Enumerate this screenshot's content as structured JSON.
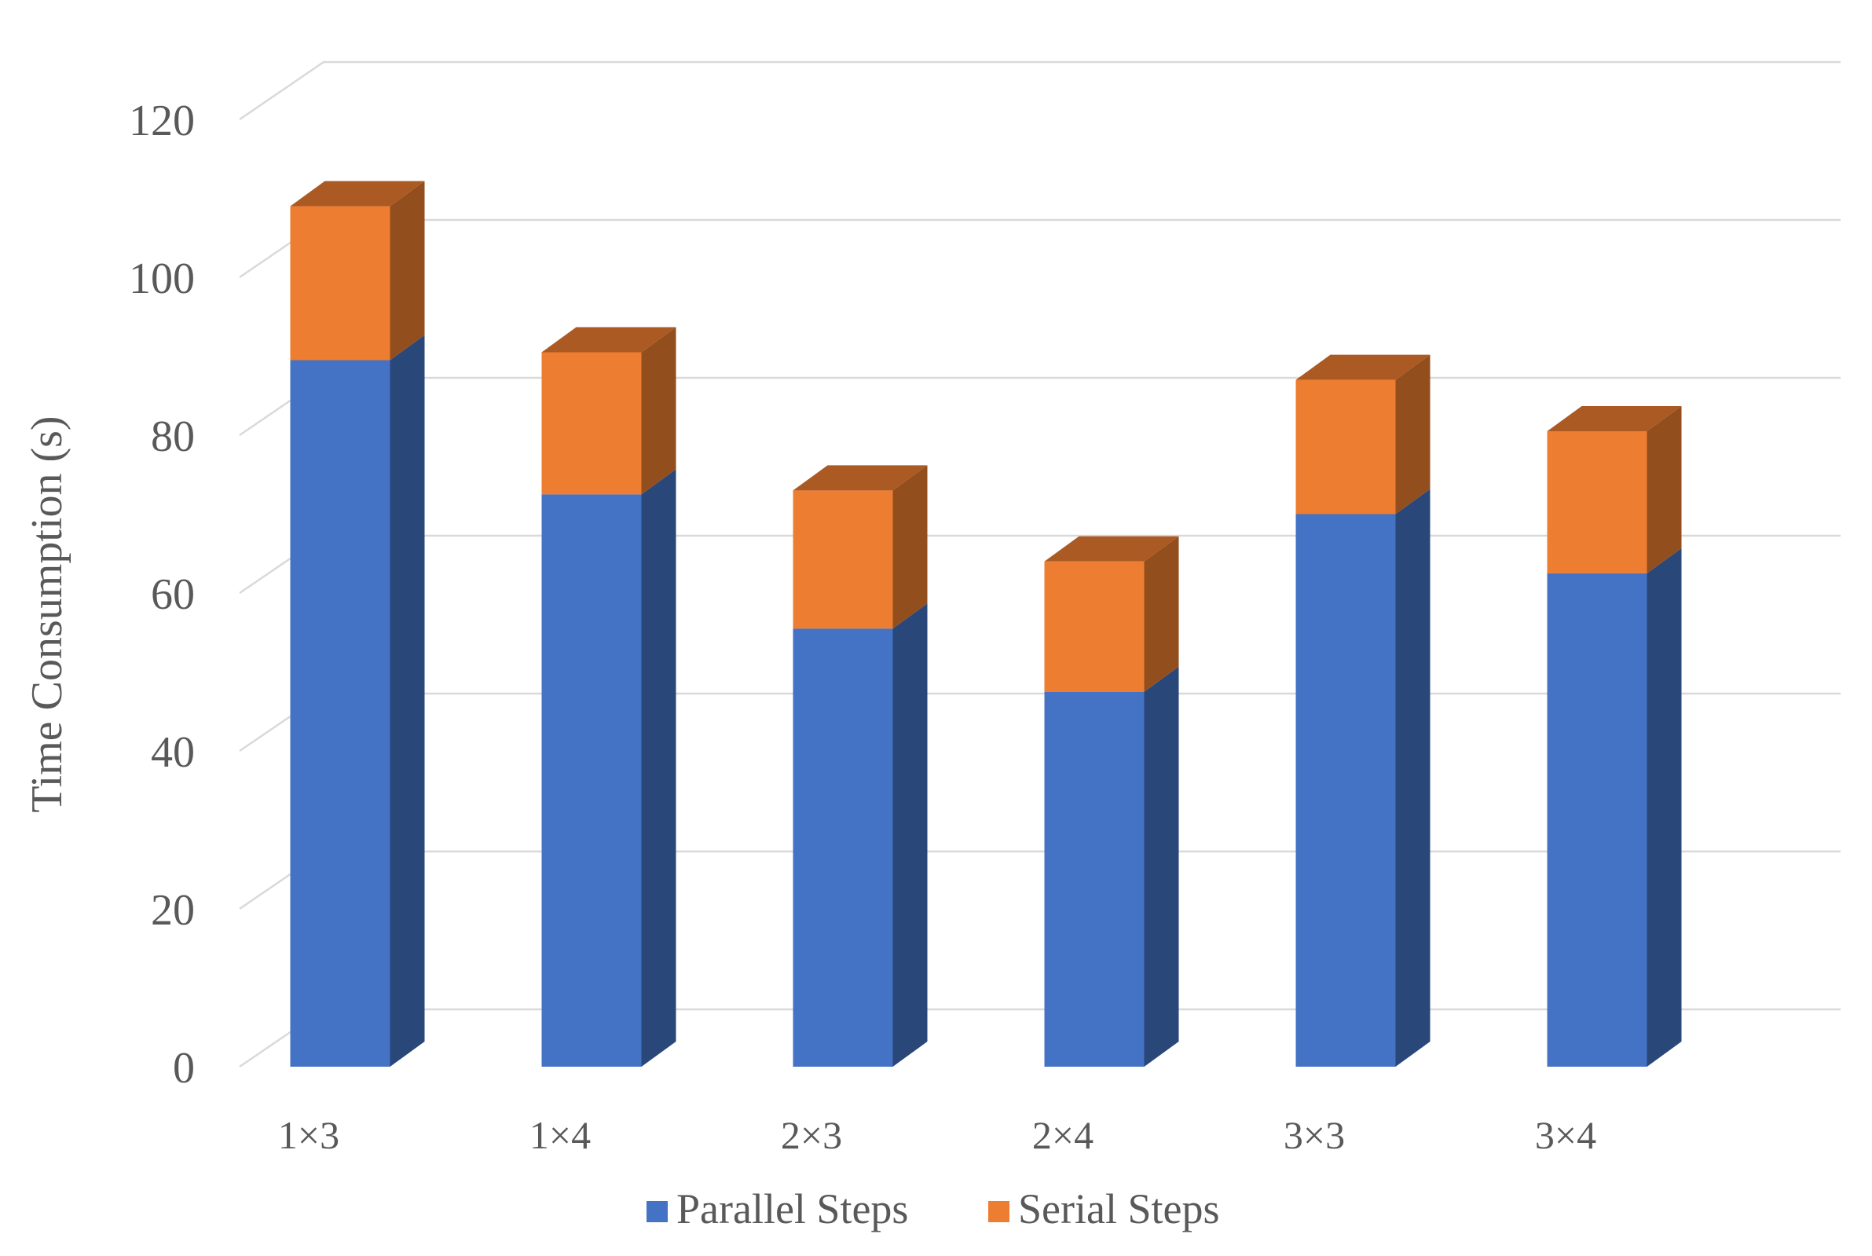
{
  "chart_data": {
    "type": "bar",
    "stacked": true,
    "three_d": true,
    "categories": [
      "1×3",
      "1×4",
      "2×3",
      "2×4",
      "3×3",
      "3×4"
    ],
    "series": [
      {
        "name": "Parallel Steps",
        "values": [
          89.5,
          72.5,
          55.5,
          47.5,
          70,
          62.5
        ],
        "color": "#4472C4"
      },
      {
        "name": "Serial Steps",
        "values": [
          19.5,
          18,
          17.5,
          16.5,
          17,
          18
        ],
        "color": "#ED7D31"
      }
    ],
    "ylabel": "Time Consumption (s)",
    "xlabel": "",
    "ylim": [
      0,
      120
    ],
    "yticks": [
      "0",
      "20",
      "40",
      "60",
      "80",
      "100",
      "120"
    ],
    "grid": true,
    "legend_position": "bottom"
  }
}
